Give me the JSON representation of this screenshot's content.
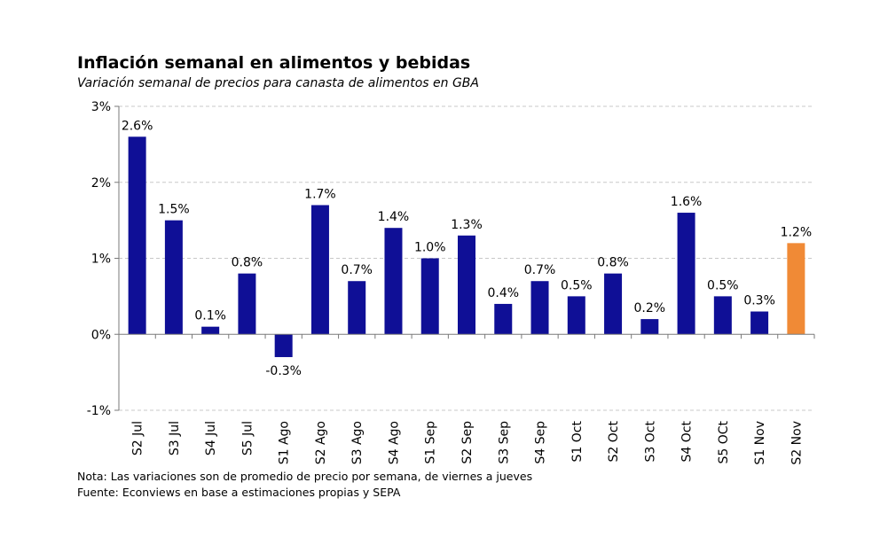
{
  "header": {
    "title": "Inflación semanal en alimentos y bebidas",
    "subtitle": "Variación semanal de precios para canasta de alimentos en GBA"
  },
  "footer": {
    "note": "Nota: Las variaciones son de promedio de precio por semana, de viernes a jueves",
    "source": "Fuente: Econviews en base a estimaciones propias y SEPA"
  },
  "colors": {
    "bar": "#0f0f96",
    "highlight": "#f08a36",
    "grid": "#c8c8c8",
    "axis": "#7a7a7a"
  },
  "chart_data": {
    "type": "bar",
    "title": "Inflación semanal en alimentos y bebidas",
    "xlabel": "",
    "ylabel": "",
    "ylim": [
      -1,
      3
    ],
    "yticks": [
      3,
      2,
      1,
      0,
      -1
    ],
    "ytick_labels": [
      "3%",
      "2%",
      "1%",
      "0%",
      "-1%"
    ],
    "grid": true,
    "highlight_index": 18,
    "categories": [
      "S2 Jul",
      "S3 Jul",
      "S4 Jul",
      "S5 Jul",
      "S1 Ago",
      "S2 Ago",
      "S3 Ago",
      "S4 Ago",
      "S1 Sep",
      "S2 Sep",
      "S3 Sep",
      "S4 Sep",
      "S1 Oct",
      "S2 Oct",
      "S3 Oct",
      "S4 Oct",
      "S5 OCt",
      "S1 Nov",
      "S2 Nov"
    ],
    "values": [
      2.6,
      1.5,
      0.1,
      0.8,
      -0.3,
      1.7,
      0.7,
      1.4,
      1.0,
      1.3,
      0.4,
      0.7,
      0.5,
      0.8,
      0.2,
      1.6,
      0.5,
      0.3,
      1.2
    ],
    "labels": [
      "2.6%",
      "1.5%",
      "0.1%",
      "0.8%",
      "-0.3%",
      "1.7%",
      "0.7%",
      "1.4%",
      "1.0%",
      "1.3%",
      "0.4%",
      "0.7%",
      "0.5%",
      "0.8%",
      "0.2%",
      "1.6%",
      "0.5%",
      "0.3%",
      "1.2%"
    ]
  }
}
